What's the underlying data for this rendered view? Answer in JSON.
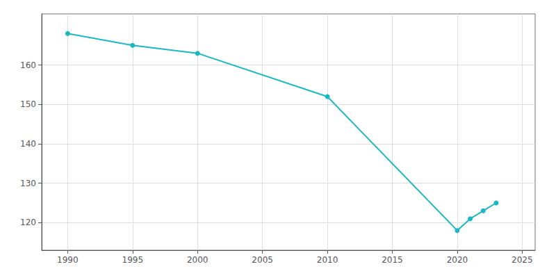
{
  "chart_data": {
    "type": "line",
    "x": [
      1990,
      1995,
      2000,
      2010,
      2020,
      2021,
      2022,
      2023
    ],
    "values": [
      168,
      165,
      163,
      152,
      118,
      121,
      123,
      125
    ],
    "color": "#1ab8c4",
    "marker": "circle",
    "xlim": [
      1988,
      2026
    ],
    "ylim": [
      113,
      173
    ],
    "xticks": [
      1990,
      1995,
      2000,
      2005,
      2010,
      2015,
      2020,
      2025
    ],
    "yticks": [
      120,
      130,
      140,
      150,
      160
    ],
    "grid": true
  }
}
